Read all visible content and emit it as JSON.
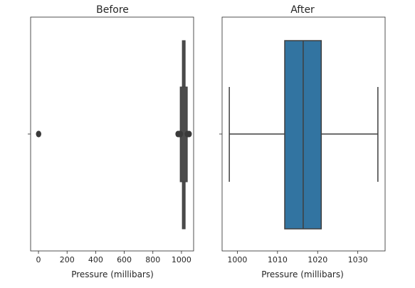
{
  "chart_data": [
    {
      "type": "box",
      "title": "Before",
      "xlabel": "Pressure (millibars)",
      "ylabel": "",
      "xlim": [
        -55,
        1085
      ],
      "xticks": [
        0,
        200,
        400,
        600,
        800,
        1000
      ],
      "grid": false,
      "box": {
        "q1": 1011,
        "median": 1016,
        "q3": 1021,
        "whisker_low": 998,
        "whisker_high": 1035,
        "fill": "#4c4c4c"
      },
      "outliers": [
        0,
        1,
        2,
        975,
        980,
        985,
        990,
        994,
        1040,
        1045,
        1050,
        1055
      ]
    },
    {
      "type": "box",
      "title": "After",
      "xlabel": "Pressure (millibars)",
      "ylabel": "",
      "xlim": [
        996.2,
        1036.8
      ],
      "xticks": [
        1000,
        1010,
        1020,
        1030
      ],
      "grid": false,
      "box": {
        "q1": 1011.8,
        "median": 1016.4,
        "q3": 1020.9,
        "whisker_low": 998.0,
        "whisker_high": 1035.0,
        "fill": "#3274a1"
      },
      "outliers": []
    }
  ],
  "colors": {
    "before_box": "#4c4c4c",
    "after_box": "#3274a1",
    "line": "#3f3f3f",
    "axis": "#262626"
  }
}
